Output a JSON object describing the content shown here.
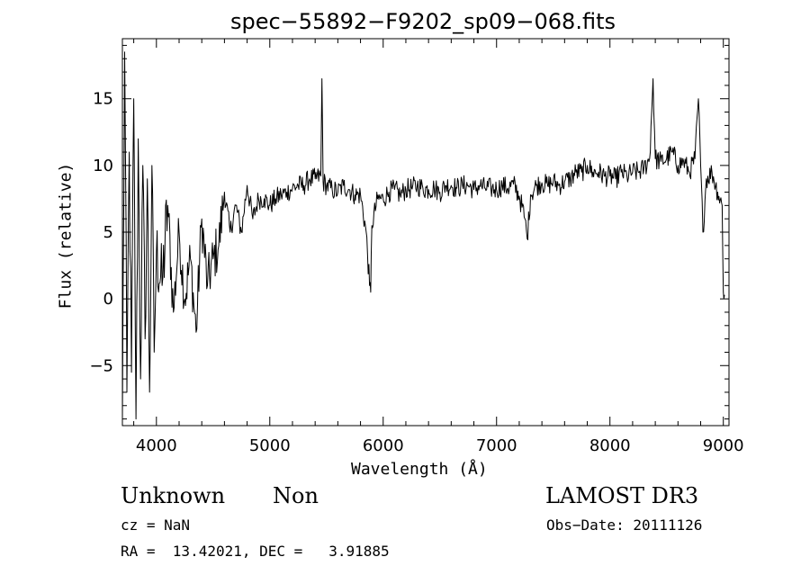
{
  "chart_data": {
    "type": "line",
    "title": "spec−55892−F9202_sp09−068.fits",
    "xlabel": "Wavelength (Å)",
    "ylabel": "Flux (relative)",
    "xlim": [
      3700,
      9050
    ],
    "ylim": [
      -9.5,
      19.5
    ],
    "xticks": [
      4000,
      5000,
      6000,
      7000,
      8000,
      9000
    ],
    "yticks": [
      -5,
      0,
      5,
      10,
      15
    ],
    "series": [
      {
        "name": "flux",
        "x": [
          3700,
          3720,
          3740,
          3760,
          3780,
          3800,
          3820,
          3840,
          3860,
          3880,
          3900,
          3920,
          3940,
          3960,
          3980,
          4000,
          4050,
          4100,
          4150,
          4200,
          4250,
          4300,
          4350,
          4400,
          4450,
          4500,
          4550,
          4600,
          4650,
          4700,
          4750,
          4800,
          4850,
          4900,
          4950,
          5000,
          5050,
          5100,
          5150,
          5200,
          5250,
          5300,
          5350,
          5400,
          5450,
          5460,
          5470,
          5500,
          5550,
          5600,
          5650,
          5700,
          5750,
          5800,
          5850,
          5880,
          5890,
          5900,
          5950,
          6000,
          6050,
          6100,
          6150,
          6200,
          6250,
          6300,
          6350,
          6400,
          6450,
          6500,
          6550,
          6600,
          6650,
          6700,
          6750,
          6800,
          6850,
          6900,
          6950,
          7000,
          7050,
          7100,
          7150,
          7200,
          7250,
          7270,
          7300,
          7350,
          7400,
          7450,
          7500,
          7550,
          7600,
          7650,
          7700,
          7750,
          7800,
          7850,
          7900,
          7950,
          8000,
          8050,
          8100,
          8150,
          8200,
          8250,
          8300,
          8350,
          8380,
          8400,
          8450,
          8500,
          8550,
          8600,
          8650,
          8700,
          8750,
          8780,
          8800,
          8820,
          8850,
          8900,
          8950,
          8990,
          9000,
          9010
        ],
        "values": [
          -9,
          18.5,
          -7,
          11,
          -5.5,
          15,
          -9,
          12,
          -6,
          10,
          -3,
          9,
          -7,
          10,
          -4,
          3.5,
          1,
          7,
          -1,
          5,
          0,
          3,
          -2.5,
          6,
          1,
          3,
          4,
          8,
          5,
          7,
          5,
          8.5,
          6,
          7.5,
          7.5,
          7,
          7.5,
          7.8,
          8,
          8.3,
          8.5,
          8.5,
          9,
          9,
          9.2,
          16.5,
          8.8,
          8.5,
          8.2,
          8,
          8.5,
          8.2,
          7.8,
          7.8,
          5,
          1,
          0.5,
          5.5,
          7.5,
          7.5,
          8,
          8.2,
          7.8,
          8.2,
          8.3,
          8.5,
          8.3,
          8.2,
          8.3,
          8,
          8.5,
          8.5,
          8.3,
          8.5,
          8.5,
          8.2,
          8.5,
          8.3,
          8.3,
          8.2,
          8.5,
          8.3,
          8.6,
          7.7,
          6,
          4.5,
          7.8,
          8.5,
          8.7,
          8.5,
          8.8,
          8.5,
          8.8,
          9,
          9.5,
          9.5,
          10,
          9.5,
          9.5,
          9.2,
          9.2,
          9,
          9.5,
          9.2,
          9.5,
          9.5,
          9.8,
          10.5,
          16.5,
          10.5,
          10.3,
          10.5,
          11,
          10,
          10.3,
          9.5,
          10.5,
          15,
          10,
          5,
          9,
          9.5,
          8,
          7,
          0.5,
          0.3
        ]
      }
    ]
  },
  "annotations": {
    "object_class": "Unknown",
    "object_subclass": "Non",
    "survey": "LAMOST DR3",
    "redshift": "cz = NaN",
    "obs_date": "Obs−Date: 20111126",
    "coords": "RA =  13.42021, DEC =   3.91885"
  }
}
